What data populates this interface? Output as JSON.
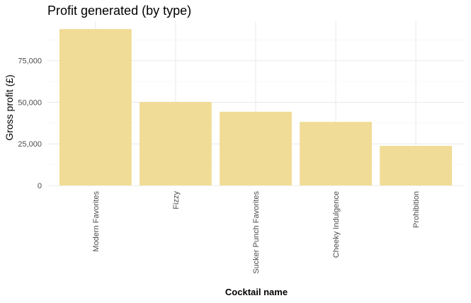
{
  "chart_data": {
    "type": "bar",
    "title": "Profit generated (by type)",
    "xlabel": "Cocktail name",
    "ylabel": "Gross profit (£)",
    "categories": [
      "Modern Favorites",
      "Fizzy",
      "Sucker Punch Favorites",
      "Cheeky Indulgence",
      "Prohibition"
    ],
    "values": [
      94000,
      50200,
      44300,
      38200,
      23800
    ],
    "yticks": [
      0,
      25000,
      50000,
      75000
    ],
    "ytick_labels": [
      "0",
      "25,000",
      "50,000",
      "75,000"
    ],
    "ylim": [
      0,
      98700
    ],
    "grid": true,
    "legend": "none",
    "bar_color": "#f0dc96"
  }
}
